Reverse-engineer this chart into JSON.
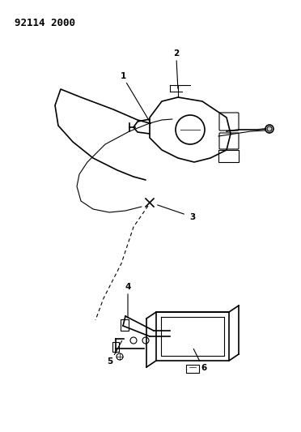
{
  "title_code": "92114 2000",
  "bg_color": "#ffffff",
  "line_color": "#000000",
  "fig_width": 3.72,
  "fig_height": 5.33,
  "dpi": 100,
  "label_1": "1",
  "label_2": "2",
  "label_3": "3",
  "label_4": "4",
  "label_5": "5",
  "label_6": "6"
}
